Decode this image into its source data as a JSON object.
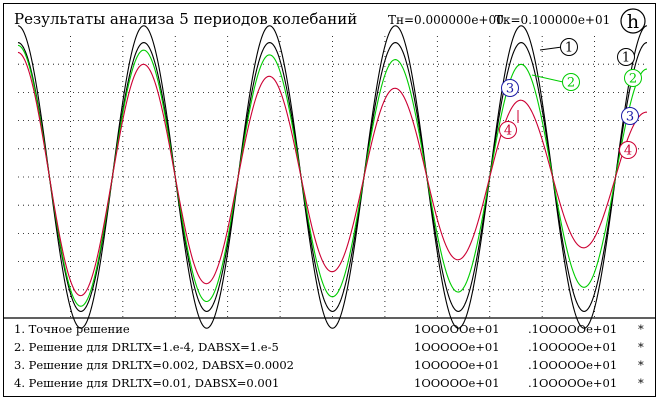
{
  "header": {
    "title": "Результаты анализа 5 периодов колебаний",
    "tn": "Tн=0.000000e+00",
    "tk": "Tк=0.100000e+01",
    "logo_text": "h"
  },
  "colors": {
    "series_1": "#000000",
    "series_2": "#00cc00",
    "series_3": "#1a1aa6",
    "series_4": "#cc0033",
    "grid": "#000000"
  },
  "chart_data": {
    "type": "line",
    "title": "Результаты анализа 5 периодов колебаний",
    "x_range": [
      0,
      1
    ],
    "periods": 5,
    "grid": "dotted",
    "series": [
      {
        "label": "1",
        "amplitude": 1.0,
        "damping": 0.0
      },
      {
        "label": "2",
        "amplitude": 0.94,
        "damping": 0.18
      },
      {
        "label": "3",
        "amplitude": 0.94,
        "damping": 0.18
      },
      {
        "label": "4",
        "amplitude": 0.89,
        "damping": 0.48
      }
    ],
    "reference_curves": [
      {
        "label": "1",
        "amplitude": 1.08
      },
      {
        "label": "1",
        "amplitude": 0.96
      }
    ],
    "curve_labels": [
      "1",
      "2",
      "3",
      "4"
    ],
    "right_edge_labels": [
      "1",
      "2",
      "3",
      "4"
    ]
  },
  "legend": [
    {
      "text": "1. Точное решение",
      "v1": "1OOOOOe+01",
      "v2": ".1OOOOOe+01",
      "flag": "*"
    },
    {
      "text": "2. Решение для DRLTX=1.e-4, DABSX=1.e-5",
      "v1": "1OOOOOe+01",
      "v2": ".1OOOOOe+01",
      "flag": "*"
    },
    {
      "text": "3. Решение для DRLTX=0.002, DABSX=0.0002",
      "v1": "1OOOOOe+01",
      "v2": ".1OOOOOe+01",
      "flag": "*"
    },
    {
      "text": "4. Решение для DRLTX=0.01, DABSX=0.001",
      "v1": "1OOOOOe+01",
      "v2": ".1OOOOOe+01",
      "flag": "*"
    }
  ]
}
